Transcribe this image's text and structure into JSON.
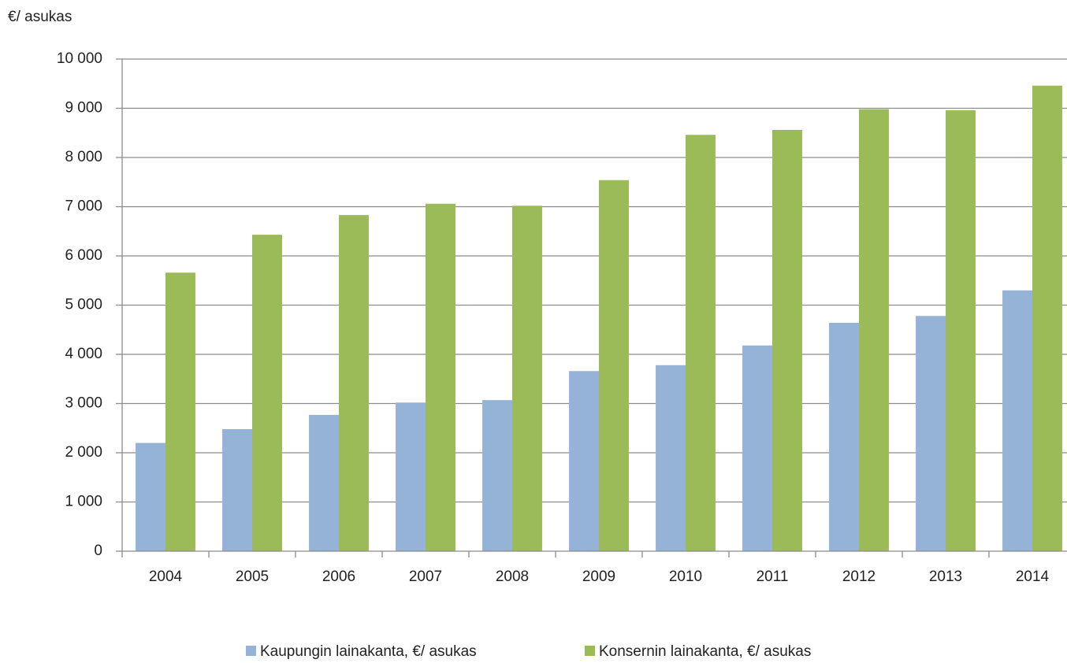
{
  "chart_data": {
    "type": "bar",
    "y_label": "€/ asukas",
    "categories": [
      "2004",
      "2005",
      "2006",
      "2007",
      "2008",
      "2009",
      "2010",
      "2011",
      "2012",
      "2013",
      "2014"
    ],
    "series": [
      {
        "name": "Kaupungin lainakanta, €/ asukas",
        "color": "#95b3d7",
        "values": [
          2200,
          2480,
          2770,
          3020,
          3070,
          3660,
          3780,
          4180,
          4640,
          4780,
          5300
        ]
      },
      {
        "name": "Konsernin lainakanta, €/ asukas",
        "color": "#9bbb59",
        "values": [
          5660,
          6430,
          6830,
          7060,
          7020,
          7540,
          8460,
          8560,
          8980,
          8960,
          9460
        ]
      }
    ],
    "ylim": [
      0,
      10000
    ],
    "yticks": [
      0,
      {
        "value": 1000,
        "label": "1 000"
      },
      {
        "value": 2000,
        "label": "2 000"
      },
      {
        "value": 3000,
        "label": "3 000"
      },
      {
        "value": 4000,
        "label": "4 000"
      },
      {
        "value": 5000,
        "label": "5 000"
      },
      {
        "value": 6000,
        "label": "6 000"
      },
      {
        "value": 7000,
        "label": "7 000"
      },
      {
        "value": 8000,
        "label": "8 000"
      },
      {
        "value": 9000,
        "label": "9 000"
      },
      {
        "value": 10000,
        "label": "10 000"
      }
    ],
    "grid": true,
    "legend": "bottom"
  }
}
